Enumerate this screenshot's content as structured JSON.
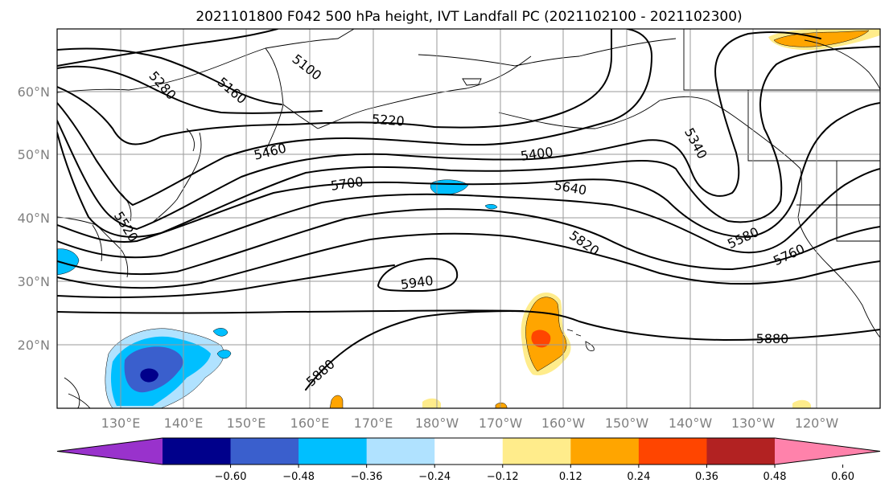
{
  "title": "2021101800 F042 500 hPa height, IVT Landfall PC (2021102100 - 2021102300)",
  "lat_labels": [
    "60°N",
    "50°N",
    "40°N",
    "30°N",
    "20°N"
  ],
  "lon_labels": [
    "130°E",
    "140°E",
    "150°E",
    "160°E",
    "170°E",
    "180°W",
    "170°W",
    "160°W",
    "150°W",
    "140°W",
    "130°W",
    "120°W"
  ],
  "contour_labels": [
    {
      "id": "5100",
      "text": "5100"
    },
    {
      "id": "5160",
      "text": "5160"
    },
    {
      "id": "5280",
      "text": "5280"
    },
    {
      "id": "5220",
      "text": "5220"
    },
    {
      "id": "5460",
      "text": "5460"
    },
    {
      "id": "5400",
      "text": "5400"
    },
    {
      "id": "5340",
      "text": "5340"
    },
    {
      "id": "5700",
      "text": "5700"
    },
    {
      "id": "5640",
      "text": "5640"
    },
    {
      "id": "5520",
      "text": "5520"
    },
    {
      "id": "5820",
      "text": "5820"
    },
    {
      "id": "5580",
      "text": "5580"
    },
    {
      "id": "5760",
      "text": "5760"
    },
    {
      "id": "5940",
      "text": "5940"
    },
    {
      "id": "5880a",
      "text": "5880"
    },
    {
      "id": "5880b",
      "text": "5880"
    }
  ],
  "colorbar": {
    "colors": [
      "#9932cc",
      "#00008b",
      "#3a5fcd",
      "#00bfff",
      "#b0e2ff",
      "#ffffff",
      "#ffec8b",
      "#ffa500",
      "#ff4500",
      "#b22222",
      "#ff82ab"
    ],
    "ticks": [
      "−0.60",
      "−0.48",
      "−0.36",
      "−0.24",
      "−0.12",
      "0.12",
      "0.24",
      "0.36",
      "0.48",
      "0.60"
    ]
  },
  "shading_colors": {
    "light_blue": "#b0e2ff",
    "deep_sky": "#00bfff",
    "royal_blue": "#3a5fcd",
    "yellow": "#ffec8b",
    "orange": "#ffa500",
    "orange_red": "#ff4500"
  }
}
